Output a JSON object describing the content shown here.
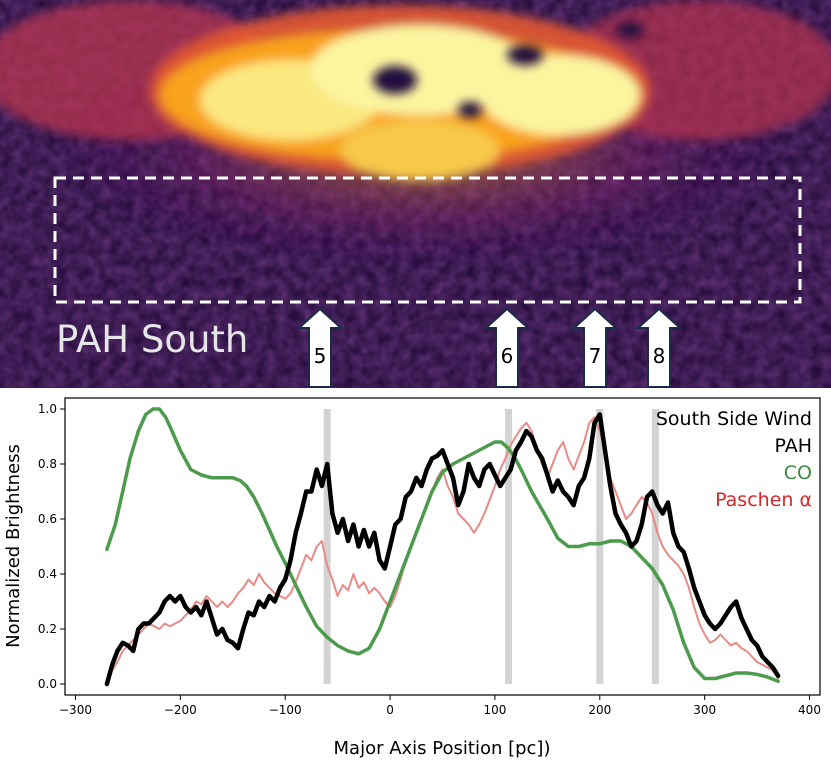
{
  "image_panel": {
    "region_label": "PAH South",
    "arrow_labels": [
      "5",
      "6",
      "7",
      "8"
    ],
    "colormap": [
      "#000004",
      "#2a0b4f",
      "#55106d",
      "#8a226a",
      "#bc3754",
      "#e45a31",
      "#f98e09",
      "#f9c932",
      "#fcffa4"
    ]
  },
  "chart_data": {
    "type": "line",
    "xlabel": "Major Axis Position [pc])",
    "ylabel": "Normalized Brightness",
    "xlim": [
      -310,
      410
    ],
    "ylim": [
      -0.04,
      1.04
    ],
    "xticks": [
      -300,
      -200,
      -100,
      0,
      100,
      200,
      300,
      400
    ],
    "yticks": [
      0.0,
      0.2,
      0.4,
      0.6,
      0.8,
      1.0
    ],
    "xtick_labels": [
      "−300",
      "−200",
      "−100",
      "0",
      "100",
      "200",
      "300",
      "400"
    ],
    "ytick_labels": [
      "0.0",
      "0.2",
      "0.4",
      "0.6",
      "0.8",
      "1.0"
    ],
    "grid": false,
    "legend_title": "South Side Wind",
    "legend_position": "top-right",
    "vertical_bands": [
      -60,
      113,
      200,
      253
    ],
    "series": [
      {
        "name": "Paschen α",
        "legend_label": "Paschen α",
        "color": "#e88a86",
        "x": [
          -270,
          -265,
          -260,
          -255,
          -250,
          -245,
          -240,
          -235,
          -230,
          -225,
          -220,
          -215,
          -210,
          -205,
          -200,
          -195,
          -190,
          -185,
          -180,
          -175,
          -170,
          -165,
          -160,
          -155,
          -150,
          -145,
          -140,
          -135,
          -130,
          -125,
          -120,
          -115,
          -110,
          -105,
          -100,
          -95,
          -90,
          -85,
          -80,
          -75,
          -70,
          -65,
          -60,
          -55,
          -50,
          -45,
          -40,
          -35,
          -30,
          -25,
          -20,
          -15,
          -10,
          -5,
          0,
          5,
          10,
          15,
          20,
          25,
          30,
          35,
          40,
          45,
          50,
          55,
          60,
          65,
          70,
          75,
          80,
          85,
          90,
          95,
          100,
          105,
          110,
          115,
          120,
          125,
          130,
          135,
          140,
          145,
          150,
          155,
          160,
          165,
          170,
          175,
          180,
          185,
          190,
          195,
          200,
          205,
          210,
          215,
          220,
          225,
          230,
          235,
          240,
          245,
          250,
          255,
          260,
          265,
          270,
          275,
          280,
          285,
          290,
          295,
          300,
          305,
          310,
          315,
          320,
          325,
          330,
          335,
          340,
          345,
          350,
          355,
          360,
          365,
          370
        ],
        "y": [
          0.0,
          0.05,
          0.08,
          0.12,
          0.14,
          0.16,
          0.18,
          0.2,
          0.22,
          0.21,
          0.2,
          0.22,
          0.21,
          0.22,
          0.23,
          0.25,
          0.27,
          0.3,
          0.29,
          0.32,
          0.3,
          0.28,
          0.3,
          0.28,
          0.3,
          0.33,
          0.35,
          0.38,
          0.36,
          0.4,
          0.37,
          0.35,
          0.33,
          0.32,
          0.31,
          0.33,
          0.37,
          0.42,
          0.47,
          0.45,
          0.5,
          0.52,
          0.43,
          0.38,
          0.32,
          0.36,
          0.34,
          0.4,
          0.35,
          0.37,
          0.33,
          0.35,
          0.33,
          0.3,
          0.28,
          0.32,
          0.38,
          0.45,
          0.5,
          0.55,
          0.6,
          0.65,
          0.7,
          0.75,
          0.78,
          0.72,
          0.68,
          0.62,
          0.6,
          0.58,
          0.55,
          0.58,
          0.62,
          0.67,
          0.72,
          0.78,
          0.82,
          0.87,
          0.9,
          0.93,
          0.95,
          0.92,
          0.85,
          0.8,
          0.75,
          0.8,
          0.85,
          0.88,
          0.82,
          0.78,
          0.83,
          0.88,
          0.95,
          0.97,
          0.92,
          0.85,
          0.75,
          0.7,
          0.65,
          0.6,
          0.62,
          0.65,
          0.68,
          0.66,
          0.62,
          0.55,
          0.5,
          0.47,
          0.45,
          0.43,
          0.4,
          0.35,
          0.28,
          0.22,
          0.18,
          0.15,
          0.16,
          0.18,
          0.16,
          0.14,
          0.15,
          0.13,
          0.12,
          0.1,
          0.08,
          0.07,
          0.06,
          0.05,
          0.02
        ]
      },
      {
        "name": "CO",
        "legend_label": "CO",
        "color": "#4c9a4c",
        "x": [
          -270,
          -262,
          -255,
          -248,
          -240,
          -233,
          -226,
          -220,
          -214,
          -208,
          -200,
          -190,
          -180,
          -170,
          -160,
          -150,
          -143,
          -137,
          -130,
          -122,
          -115,
          -108,
          -100,
          -90,
          -80,
          -70,
          -60,
          -50,
          -40,
          -30,
          -20,
          -10,
          0,
          10,
          20,
          30,
          40,
          50,
          60,
          70,
          80,
          90,
          100,
          106,
          112,
          118,
          125,
          135,
          150,
          160,
          170,
          180,
          190,
          200,
          210,
          220,
          230,
          240,
          250,
          260,
          270,
          280,
          290,
          300,
          310,
          320,
          330,
          340,
          350,
          360,
          370
        ],
        "y": [
          0.49,
          0.58,
          0.7,
          0.82,
          0.92,
          0.98,
          1.0,
          1.0,
          0.97,
          0.92,
          0.85,
          0.78,
          0.76,
          0.75,
          0.75,
          0.75,
          0.74,
          0.72,
          0.68,
          0.62,
          0.56,
          0.5,
          0.44,
          0.36,
          0.28,
          0.21,
          0.17,
          0.14,
          0.12,
          0.11,
          0.13,
          0.2,
          0.3,
          0.4,
          0.5,
          0.6,
          0.7,
          0.77,
          0.8,
          0.82,
          0.84,
          0.86,
          0.88,
          0.88,
          0.86,
          0.83,
          0.78,
          0.7,
          0.6,
          0.53,
          0.5,
          0.5,
          0.51,
          0.51,
          0.52,
          0.52,
          0.5,
          0.46,
          0.42,
          0.36,
          0.27,
          0.15,
          0.06,
          0.02,
          0.02,
          0.03,
          0.04,
          0.04,
          0.035,
          0.025,
          0.01
        ]
      },
      {
        "name": "PAH",
        "legend_label": "PAH",
        "color": "#000000",
        "x": [
          -270,
          -265,
          -260,
          -255,
          -250,
          -245,
          -240,
          -235,
          -230,
          -225,
          -220,
          -215,
          -210,
          -205,
          -200,
          -195,
          -190,
          -185,
          -180,
          -175,
          -170,
          -165,
          -160,
          -155,
          -150,
          -145,
          -140,
          -135,
          -130,
          -125,
          -120,
          -115,
          -110,
          -105,
          -100,
          -95,
          -90,
          -85,
          -80,
          -75,
          -70,
          -65,
          -60,
          -55,
          -50,
          -45,
          -40,
          -35,
          -30,
          -25,
          -20,
          -15,
          -10,
          -5,
          0,
          5,
          10,
          15,
          20,
          25,
          30,
          35,
          40,
          45,
          50,
          55,
          60,
          65,
          70,
          75,
          80,
          85,
          90,
          95,
          100,
          105,
          110,
          115,
          120,
          125,
          130,
          135,
          140,
          145,
          150,
          155,
          160,
          165,
          170,
          175,
          180,
          185,
          190,
          195,
          200,
          205,
          210,
          215,
          220,
          225,
          230,
          235,
          240,
          245,
          250,
          255,
          260,
          265,
          270,
          275,
          280,
          285,
          290,
          295,
          300,
          305,
          310,
          315,
          320,
          325,
          330,
          335,
          340,
          345,
          350,
          355,
          360,
          365,
          370
        ],
        "y": [
          0.0,
          0.07,
          0.12,
          0.15,
          0.14,
          0.12,
          0.2,
          0.22,
          0.22,
          0.24,
          0.26,
          0.3,
          0.32,
          0.3,
          0.32,
          0.28,
          0.26,
          0.28,
          0.25,
          0.3,
          0.24,
          0.18,
          0.2,
          0.16,
          0.15,
          0.13,
          0.2,
          0.26,
          0.25,
          0.3,
          0.28,
          0.32,
          0.3,
          0.35,
          0.38,
          0.45,
          0.55,
          0.62,
          0.7,
          0.7,
          0.78,
          0.72,
          0.8,
          0.62,
          0.55,
          0.6,
          0.52,
          0.58,
          0.5,
          0.56,
          0.5,
          0.55,
          0.45,
          0.42,
          0.5,
          0.58,
          0.6,
          0.68,
          0.7,
          0.75,
          0.72,
          0.78,
          0.82,
          0.83,
          0.85,
          0.8,
          0.75,
          0.65,
          0.7,
          0.8,
          0.75,
          0.72,
          0.78,
          0.8,
          0.76,
          0.72,
          0.75,
          0.78,
          0.85,
          0.88,
          0.92,
          0.9,
          0.85,
          0.82,
          0.76,
          0.7,
          0.74,
          0.7,
          0.68,
          0.65,
          0.72,
          0.75,
          0.82,
          0.95,
          0.98,
          0.85,
          0.72,
          0.62,
          0.58,
          0.55,
          0.5,
          0.52,
          0.58,
          0.68,
          0.7,
          0.65,
          0.62,
          0.66,
          0.55,
          0.5,
          0.48,
          0.42,
          0.35,
          0.3,
          0.25,
          0.22,
          0.2,
          0.22,
          0.25,
          0.28,
          0.3,
          0.24,
          0.2,
          0.16,
          0.14,
          0.1,
          0.08,
          0.06,
          0.03
        ]
      }
    ]
  }
}
